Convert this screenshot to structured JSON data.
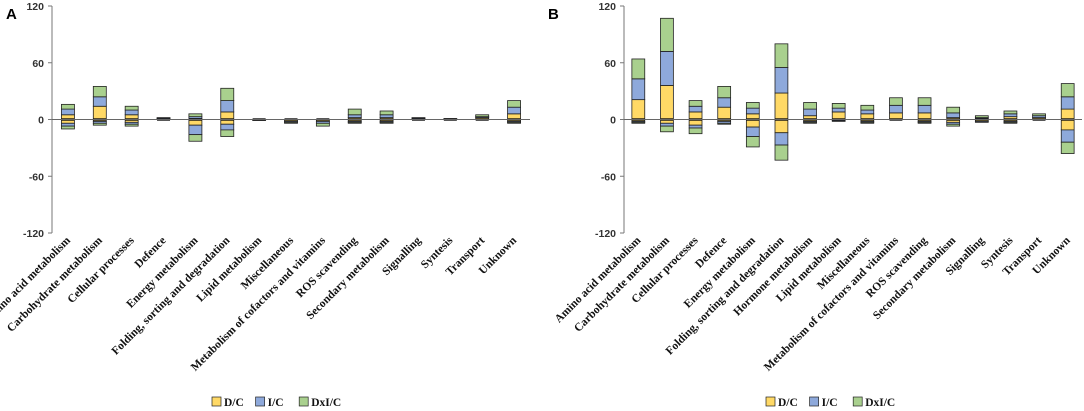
{
  "figure": {
    "panels": [
      "A",
      "B"
    ]
  },
  "chart_data": [
    {
      "panel": "A",
      "type": "bar",
      "stacked": true,
      "title": "",
      "xlabel": "",
      "ylabel": "",
      "ylim": [
        -120,
        120
      ],
      "yticks": [
        120,
        60,
        0,
        -60,
        -120
      ],
      "categories": [
        "Amino acid metabolism",
        "Carbohydrate metabolism",
        "Cellular processes",
        "Defence",
        "Energy metabolism",
        "Folding, sorting and degradation",
        "Lipid metabolism",
        "Miscellaneous",
        "Metabolism of cofactors and vitamins",
        "ROS scavending",
        "Secondary metabolism",
        "Signalling",
        "Syntesis",
        "Transport",
        "Unknown"
      ],
      "series": [
        {
          "name": "D/C",
          "color": "#FFD966",
          "pos": [
            5,
            14,
            5,
            1,
            1,
            8,
            0,
            0,
            0,
            2,
            2,
            1,
            1,
            2,
            6
          ],
          "neg": [
            -4,
            -2,
            -3,
            0,
            -6,
            -5,
            -1,
            -2,
            -2,
            -2,
            -2,
            0,
            0,
            0,
            -2
          ]
        },
        {
          "name": "I/C",
          "color": "#8EA9DB",
          "pos": [
            6,
            10,
            5,
            1,
            2,
            12,
            0,
            0,
            0,
            3,
            3,
            1,
            0,
            1,
            7
          ],
          "neg": [
            -3,
            -2,
            -2,
            0,
            -10,
            -6,
            0,
            -1,
            -2,
            -1,
            -1,
            0,
            0,
            0,
            -1
          ]
        },
        {
          "name": "DxI/C",
          "color": "#A9D08E",
          "pos": [
            5,
            11,
            4,
            0,
            3,
            13,
            0,
            0,
            0,
            6,
            4,
            0,
            0,
            2,
            7
          ],
          "neg": [
            -3,
            -2,
            -2,
            0,
            -7,
            -7,
            0,
            -1,
            -3,
            -1,
            -1,
            0,
            0,
            0,
            -1
          ]
        }
      ],
      "legend": {
        "position": "bottom",
        "entries": [
          "D/C",
          "I/C",
          "DxI/C"
        ]
      }
    },
    {
      "panel": "B",
      "type": "bar",
      "stacked": true,
      "title": "",
      "xlabel": "",
      "ylabel": "",
      "ylim": [
        -120,
        120
      ],
      "yticks": [
        120,
        60,
        0,
        -60,
        -120
      ],
      "categories": [
        "Amino acid metabolism",
        "Carbohydrate metabolism",
        "Cellular processes",
        "Defence",
        "Energy metabolism",
        "Folding, sorting and degradation",
        "Hormone metabolism",
        "Lipid metabolism",
        "Miscellaneous",
        "Metabolism of cofactors and vitamins",
        "ROS scavending",
        "Secondary metabolism",
        "Signalling",
        "Syntesis",
        "Transport",
        "Unknown"
      ],
      "series": [
        {
          "name": "D/C",
          "color": "#FFD966",
          "pos": [
            21,
            36,
            8,
            13,
            6,
            28,
            4,
            8,
            6,
            7,
            7,
            2,
            1,
            3,
            2,
            11
          ],
          "neg": [
            -2,
            -4,
            -6,
            -2,
            -8,
            -14,
            -2,
            -1,
            -2,
            0,
            -2,
            -3,
            -2,
            -2,
            0,
            -11
          ]
        },
        {
          "name": "I/C",
          "color": "#8EA9DB",
          "pos": [
            22,
            36,
            6,
            10,
            6,
            27,
            7,
            4,
            4,
            8,
            8,
            5,
            1,
            3,
            2,
            13
          ],
          "neg": [
            -1,
            -3,
            -3,
            -2,
            -10,
            -13,
            -1,
            -1,
            -1,
            0,
            -1,
            -2,
            -1,
            -1,
            0,
            -13
          ]
        },
        {
          "name": "DxI/C",
          "color": "#A9D08E",
          "pos": [
            21,
            35,
            6,
            12,
            6,
            25,
            7,
            5,
            5,
            8,
            8,
            6,
            2,
            3,
            2,
            14
          ],
          "neg": [
            -1,
            -6,
            -6,
            -1,
            -11,
            -16,
            -1,
            0,
            -1,
            0,
            -1,
            -2,
            0,
            -1,
            0,
            -12
          ]
        }
      ],
      "legend": {
        "position": "bottom",
        "entries": [
          "D/C",
          "I/C",
          "DxI/C"
        ]
      }
    }
  ]
}
